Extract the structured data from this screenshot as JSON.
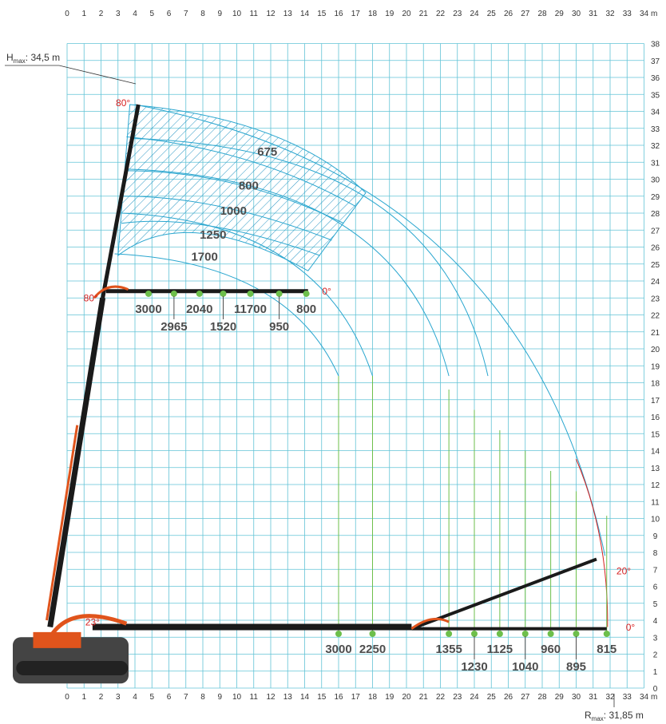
{
  "colors": {
    "grid": "#62c3d6",
    "envelope": "#2aa6cf",
    "hatch": "#2a96c4",
    "green": "#6dbf4b",
    "accent": "#d62020",
    "boom": "#1a1a1a",
    "machine": "#e0541c",
    "label": "#4d4d4d"
  },
  "chart_data": {
    "type": "load-range-diagram",
    "xlim": [
      0,
      34
    ],
    "ylim": [
      0,
      38
    ],
    "x_unit": "m",
    "y_unit": "m",
    "x_ticks": [
      0,
      1,
      2,
      3,
      4,
      5,
      6,
      7,
      8,
      9,
      10,
      11,
      12,
      13,
      14,
      15,
      16,
      17,
      18,
      19,
      20,
      21,
      22,
      23,
      24,
      25,
      26,
      27,
      28,
      29,
      30,
      31,
      32,
      33,
      34
    ],
    "y_ticks": [
      0,
      1,
      2,
      3,
      4,
      5,
      6,
      7,
      8,
      9,
      10,
      11,
      12,
      13,
      14,
      15,
      16,
      17,
      18,
      19,
      20,
      21,
      22,
      23,
      24,
      25,
      26,
      27,
      28,
      29,
      30,
      31,
      32,
      33,
      34,
      35,
      36,
      37,
      38
    ],
    "h_max": {
      "prefix": "H",
      "sub": "max",
      "value": ": 34,5 m"
    },
    "r_max": {
      "prefix": "R",
      "sub": "max",
      "value": ": 31,85 m"
    },
    "angles": [
      {
        "label": "80°",
        "x": 3.3,
        "y": 34.3
      },
      {
        "label": "80°",
        "x": 1.4,
        "y": 22.8
      },
      {
        "label": "0°",
        "x": 15.3,
        "y": 23.2
      },
      {
        "label": "23°",
        "x": 1.5,
        "y": 3.7
      },
      {
        "label": "20°",
        "x": 32.8,
        "y": 6.7
      },
      {
        "label": "0°",
        "x": 33.2,
        "y": 3.4
      }
    ],
    "arc_labels": [
      {
        "label": "675",
        "x": 11.8,
        "y": 31.4
      },
      {
        "label": "800",
        "x": 10.7,
        "y": 29.4
      },
      {
        "label": "1000",
        "x": 9.8,
        "y": 27.9
      },
      {
        "label": "1250",
        "x": 8.6,
        "y": 26.5
      },
      {
        "label": "1700",
        "x": 8.1,
        "y": 25.2
      }
    ],
    "upper_points": [
      {
        "x": 4.8,
        "label": "3000",
        "row": 1
      },
      {
        "x": 6.3,
        "label": "2965",
        "row": 2
      },
      {
        "x": 7.8,
        "label": "2040",
        "row": 1
      },
      {
        "x": 9.2,
        "label": "1520",
        "row": 2
      },
      {
        "x": 10.8,
        "label": "11700",
        "row": 1
      },
      {
        "x": 12.5,
        "label": "950",
        "row": 2
      },
      {
        "x": 14.1,
        "label": "800",
        "row": 1
      }
    ],
    "lower_points": [
      {
        "x": 16.0,
        "label": "3000",
        "row": 1
      },
      {
        "x": 18.0,
        "label": "2250",
        "row": 1
      },
      {
        "x": 22.5,
        "label": "1355",
        "row": 1
      },
      {
        "x": 24.0,
        "label": "1230",
        "row": 2
      },
      {
        "x": 25.5,
        "label": "1125",
        "row": 1
      },
      {
        "x": 27.0,
        "label": "1040",
        "row": 2
      },
      {
        "x": 28.5,
        "label": "960",
        "row": 1
      },
      {
        "x": 30.0,
        "label": "895",
        "row": 2
      },
      {
        "x": 31.8,
        "label": "815",
        "row": 1
      }
    ]
  }
}
